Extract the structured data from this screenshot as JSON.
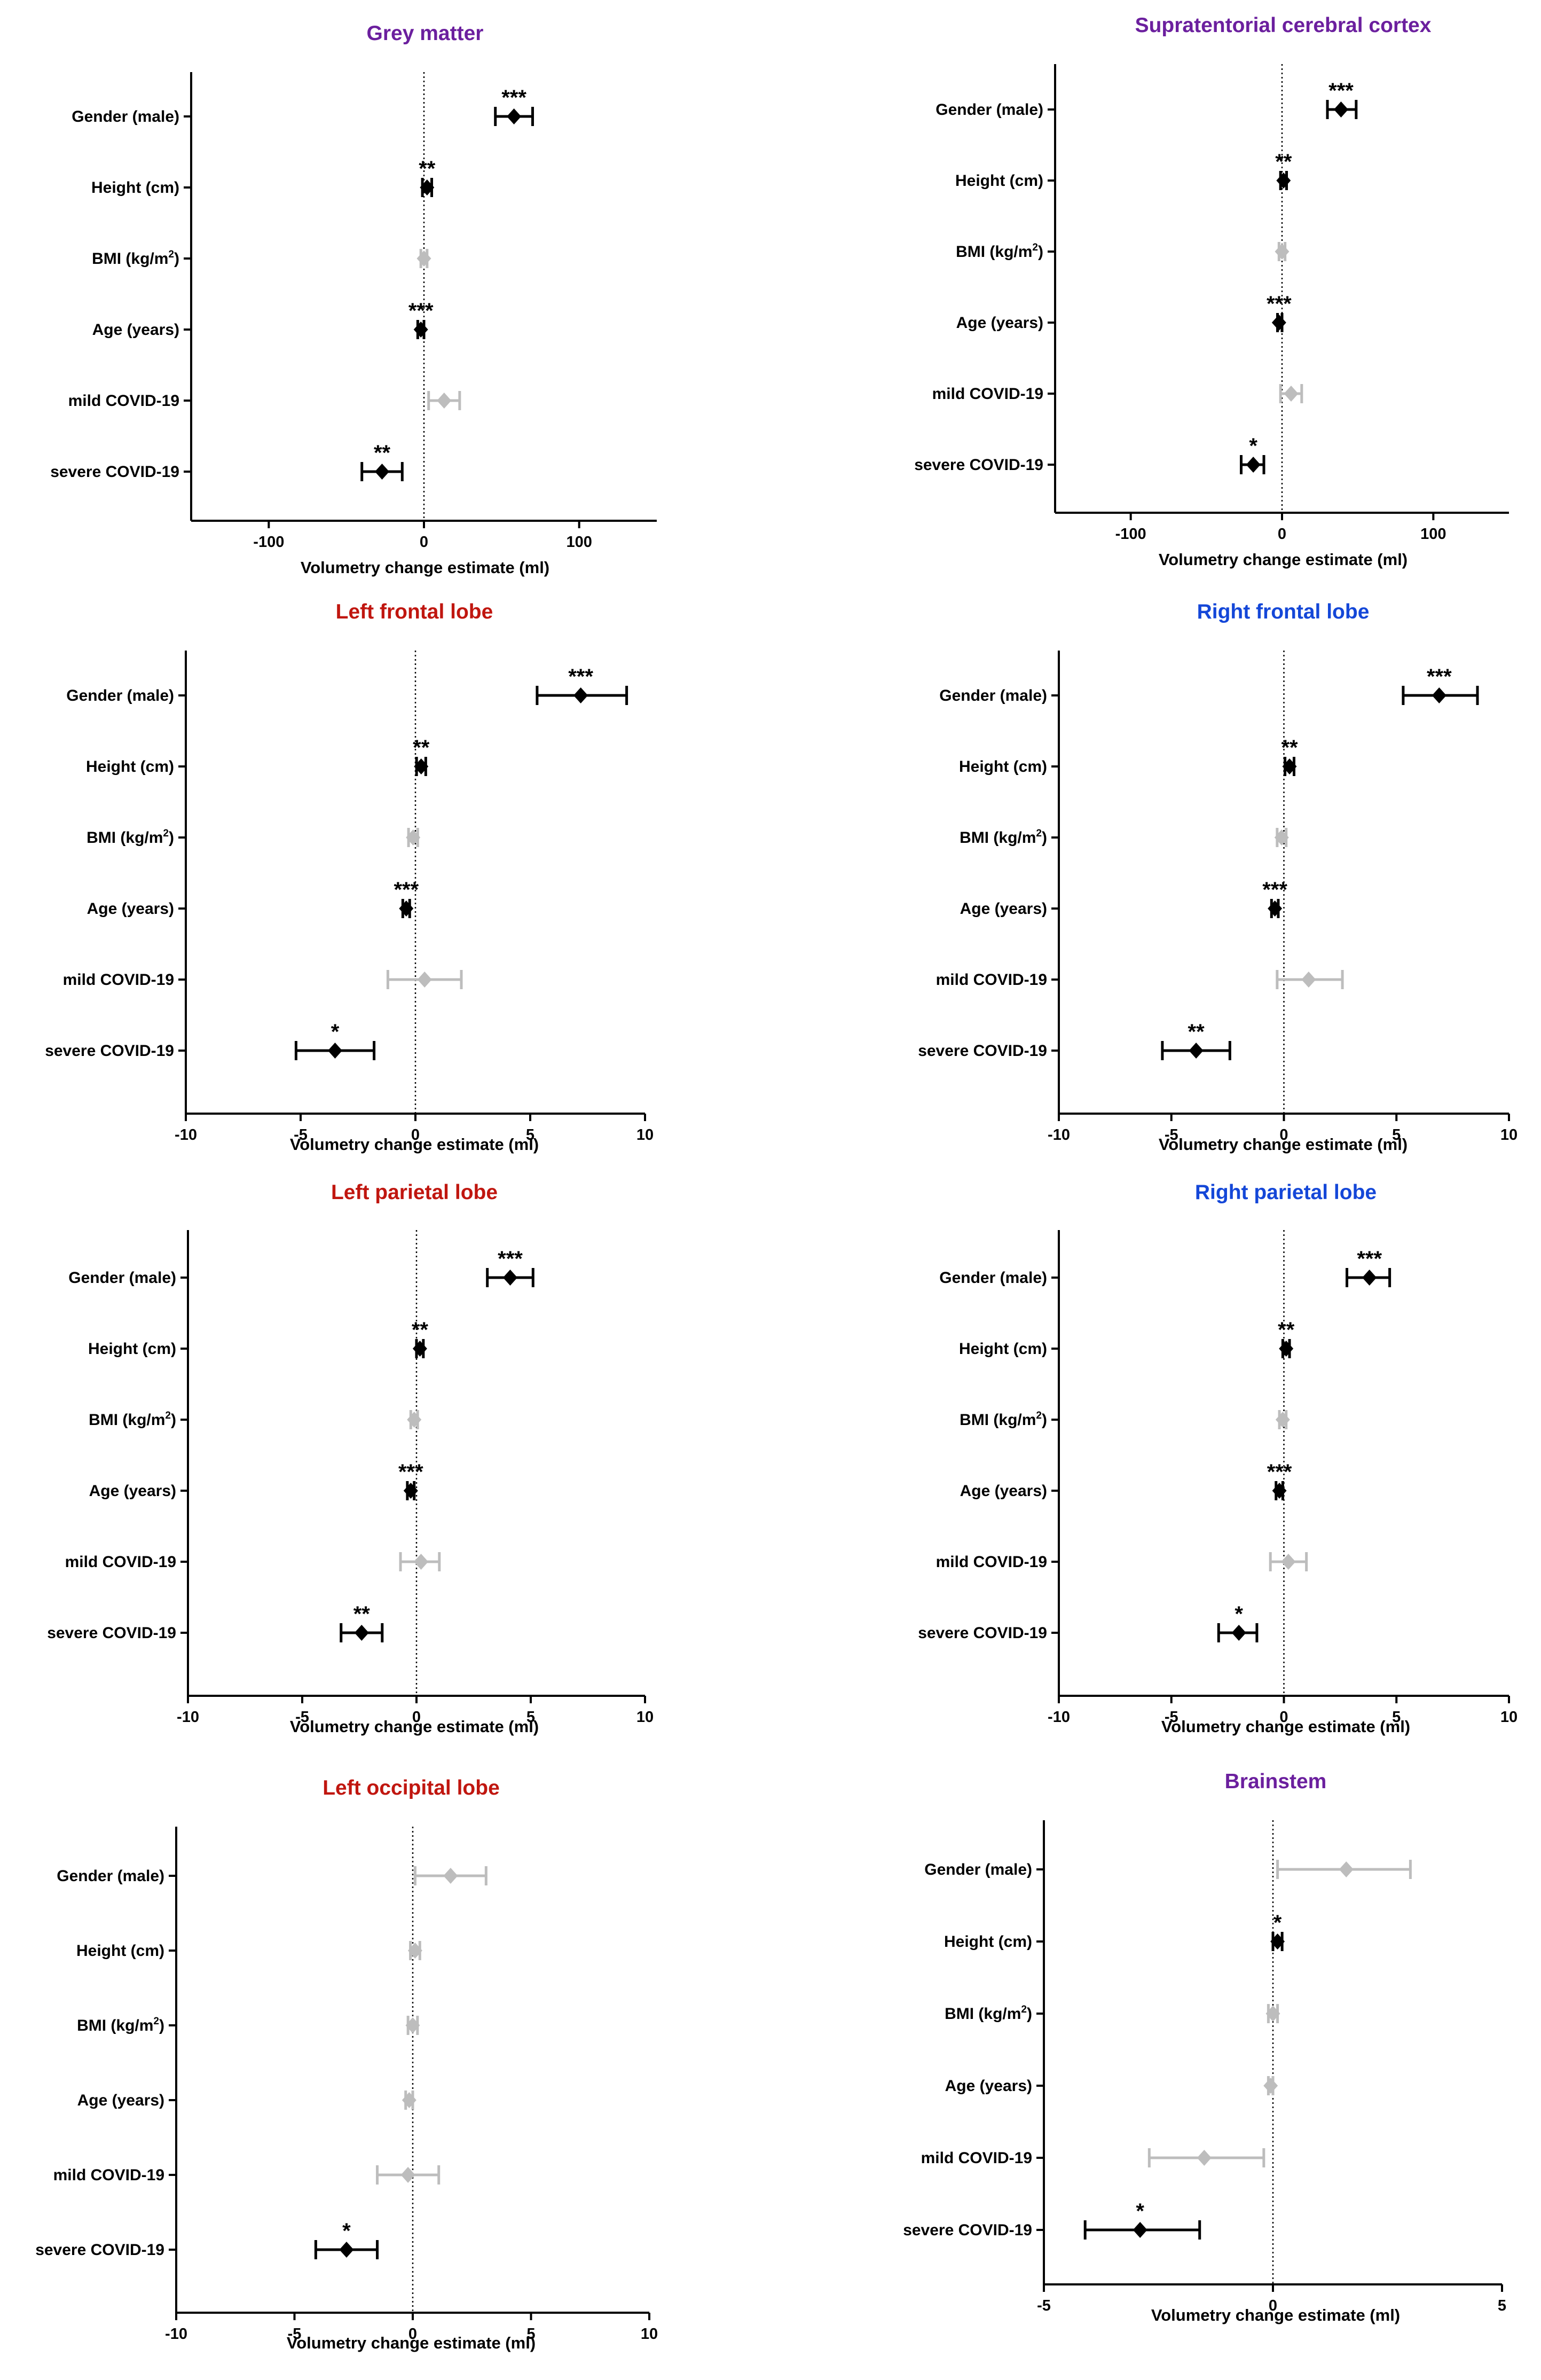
{
  "colors": {
    "purple": "#6b1f9e",
    "red": "#c0160f",
    "blue": "#1447d8",
    "black": "#000000",
    "grey": "#bdbdbd"
  },
  "chart_data": [
    {
      "type": "forest",
      "title": "Grey matter",
      "title_color": "purple",
      "xlabel": "Volumetry change estimate (ml)",
      "xlim": [
        -150,
        150
      ],
      "ticks": [
        -100,
        0,
        100
      ],
      "tick_labels": [
        "-100",
        "0",
        "100"
      ],
      "rows": [
        {
          "label": "Gender (male)",
          "est": 58,
          "lo": 46,
          "hi": 70,
          "sig": "***",
          "color": "black"
        },
        {
          "label": "Height (cm)",
          "est": 2,
          "lo": -1,
          "hi": 5,
          "sig": "**",
          "color": "black"
        },
        {
          "label": "BMI (kg/m",
          "sup": "2",
          "post": ")",
          "est": 0,
          "lo": -2,
          "hi": 2,
          "sig": "",
          "color": "grey"
        },
        {
          "label": "Age (years)",
          "est": -2,
          "lo": -4,
          "hi": 0,
          "sig": "***",
          "color": "black"
        },
        {
          "label": "mild COVID-19",
          "est": 13,
          "lo": 3,
          "hi": 23,
          "sig": "",
          "color": "grey"
        },
        {
          "label": "severe COVID-19",
          "est": -27,
          "lo": -40,
          "hi": -14,
          "sig": "**",
          "color": "black"
        }
      ]
    },
    {
      "type": "forest",
      "title": "Supratentorial cerebral cortex",
      "title_color": "purple",
      "xlabel": "Volumetry change estimate (ml)",
      "xlim": [
        -150,
        150
      ],
      "ticks": [
        -100,
        0,
        100
      ],
      "tick_labels": [
        "-100",
        "0",
        "100"
      ],
      "rows": [
        {
          "label": "Gender (male)",
          "est": 39,
          "lo": 30,
          "hi": 49,
          "sig": "***",
          "color": "black"
        },
        {
          "label": "Height (cm)",
          "est": 1,
          "lo": -1,
          "hi": 3,
          "sig": "**",
          "color": "black"
        },
        {
          "label": "BMI (kg/m",
          "sup": "2",
          "post": ")",
          "est": 0,
          "lo": -2,
          "hi": 2,
          "sig": "",
          "color": "grey"
        },
        {
          "label": "Age (years)",
          "est": -2,
          "lo": -3,
          "hi": 0,
          "sig": "***",
          "color": "black"
        },
        {
          "label": "mild COVID-19",
          "est": 6,
          "lo": -1,
          "hi": 13,
          "sig": "",
          "color": "grey"
        },
        {
          "label": "severe COVID-19",
          "est": -19,
          "lo": -27,
          "hi": -12,
          "sig": "*",
          "color": "black"
        }
      ]
    },
    {
      "type": "forest",
      "title": "Left frontal lobe",
      "title_color": "red",
      "xlabel": "Volumetry change estimate (ml)",
      "xlim": [
        -10,
        10
      ],
      "ticks": [
        -10,
        -5,
        0,
        5,
        10
      ],
      "tick_labels": [
        "-10",
        "-5",
        "0",
        "5",
        "10"
      ],
      "rows": [
        {
          "label": "Gender (male)",
          "est": 7.2,
          "lo": 5.3,
          "hi": 9.2,
          "sig": "***",
          "color": "black"
        },
        {
          "label": "Height (cm)",
          "est": 0.25,
          "lo": 0.05,
          "hi": 0.45,
          "sig": "**",
          "color": "black"
        },
        {
          "label": "BMI (kg/m",
          "sup": "2",
          "post": ")",
          "est": -0.1,
          "lo": -0.3,
          "hi": 0.1,
          "sig": "",
          "color": "grey"
        },
        {
          "label": "Age (years)",
          "est": -0.4,
          "lo": -0.55,
          "hi": -0.25,
          "sig": "***",
          "color": "black"
        },
        {
          "label": "mild COVID-19",
          "est": 0.4,
          "lo": -1.2,
          "hi": 2.0,
          "sig": "",
          "color": "grey"
        },
        {
          "label": "severe COVID-19",
          "est": -3.5,
          "lo": -5.2,
          "hi": -1.8,
          "sig": "*",
          "color": "black"
        }
      ]
    },
    {
      "type": "forest",
      "title": "Right frontal lobe",
      "title_color": "blue",
      "xlabel": "Volumetry change estimate (ml)",
      "xlim": [
        -10,
        10
      ],
      "ticks": [
        -10,
        -5,
        0,
        5,
        10
      ],
      "tick_labels": [
        "-10",
        "-5",
        "0",
        "5",
        "10"
      ],
      "rows": [
        {
          "label": "Gender (male)",
          "est": 6.9,
          "lo": 5.3,
          "hi": 8.6,
          "sig": "***",
          "color": "black"
        },
        {
          "label": "Height (cm)",
          "est": 0.25,
          "lo": 0.05,
          "hi": 0.45,
          "sig": "**",
          "color": "black"
        },
        {
          "label": "BMI (kg/m",
          "sup": "2",
          "post": ")",
          "est": -0.1,
          "lo": -0.3,
          "hi": 0.1,
          "sig": "",
          "color": "grey"
        },
        {
          "label": "Age (years)",
          "est": -0.4,
          "lo": -0.55,
          "hi": -0.25,
          "sig": "***",
          "color": "black"
        },
        {
          "label": "mild COVID-19",
          "est": 1.1,
          "lo": -0.3,
          "hi": 2.6,
          "sig": "",
          "color": "grey"
        },
        {
          "label": "severe COVID-19",
          "est": -3.9,
          "lo": -5.4,
          "hi": -2.4,
          "sig": "**",
          "color": "black"
        }
      ]
    },
    {
      "type": "forest",
      "title": "Left parietal lobe",
      "title_color": "red",
      "xlabel": "Volumetry change estimate (ml)",
      "xlim": [
        -10,
        10
      ],
      "ticks": [
        -10,
        -5,
        0,
        5,
        10
      ],
      "tick_labels": [
        "-10",
        "-5",
        "0",
        "5",
        "10"
      ],
      "rows": [
        {
          "label": "Gender (male)",
          "est": 4.1,
          "lo": 3.1,
          "hi": 5.1,
          "sig": "***",
          "color": "black"
        },
        {
          "label": "Height (cm)",
          "est": 0.15,
          "lo": 0.0,
          "hi": 0.3,
          "sig": "**",
          "color": "black"
        },
        {
          "label": "BMI (kg/m",
          "sup": "2",
          "post": ")",
          "est": -0.1,
          "lo": -0.25,
          "hi": 0.05,
          "sig": "",
          "color": "grey"
        },
        {
          "label": "Age (years)",
          "est": -0.25,
          "lo": -0.4,
          "hi": -0.1,
          "sig": "***",
          "color": "black"
        },
        {
          "label": "mild COVID-19",
          "est": 0.2,
          "lo": -0.7,
          "hi": 1.0,
          "sig": "",
          "color": "grey"
        },
        {
          "label": "severe COVID-19",
          "est": -2.4,
          "lo": -3.3,
          "hi": -1.5,
          "sig": "**",
          "color": "black"
        }
      ]
    },
    {
      "type": "forest",
      "title": "Right parietal lobe",
      "title_color": "blue",
      "xlabel": "Volumetry change estimate (ml)",
      "xlim": [
        -10,
        10
      ],
      "ticks": [
        -10,
        -5,
        0,
        5,
        10
      ],
      "tick_labels": [
        "-10",
        "-5",
        "0",
        "5",
        "10"
      ],
      "rows": [
        {
          "label": "Gender (male)",
          "est": 3.8,
          "lo": 2.8,
          "hi": 4.7,
          "sig": "***",
          "color": "black"
        },
        {
          "label": "Height (cm)",
          "est": 0.1,
          "lo": -0.05,
          "hi": 0.25,
          "sig": "**",
          "color": "black"
        },
        {
          "label": "BMI (kg/m",
          "sup": "2",
          "post": ")",
          "est": -0.05,
          "lo": -0.2,
          "hi": 0.1,
          "sig": "",
          "color": "grey"
        },
        {
          "label": "Age (years)",
          "est": -0.2,
          "lo": -0.35,
          "hi": -0.05,
          "sig": "***",
          "color": "black"
        },
        {
          "label": "mild COVID-19",
          "est": 0.2,
          "lo": -0.6,
          "hi": 1.0,
          "sig": "",
          "color": "grey"
        },
        {
          "label": "severe COVID-19",
          "est": -2.0,
          "lo": -2.9,
          "hi": -1.2,
          "sig": "*",
          "color": "black"
        }
      ]
    },
    {
      "type": "forest",
      "title": "Left occipital lobe",
      "title_color": "red",
      "xlabel": "Volumetry change estimate (ml)",
      "xlim": [
        -10,
        10
      ],
      "ticks": [
        -10,
        -5,
        0,
        5,
        10
      ],
      "tick_labels": [
        "-10",
        "-5",
        "0",
        "5",
        "10"
      ],
      "rows": [
        {
          "label": "Gender (male)",
          "est": 1.6,
          "lo": 0.1,
          "hi": 3.1,
          "sig": "",
          "color": "grey"
        },
        {
          "label": "Height (cm)",
          "est": 0.1,
          "lo": -0.1,
          "hi": 0.3,
          "sig": "",
          "color": "grey"
        },
        {
          "label": "BMI (kg/m",
          "sup": "2",
          "post": ")",
          "est": 0.0,
          "lo": -0.2,
          "hi": 0.2,
          "sig": "",
          "color": "grey"
        },
        {
          "label": "Age (years)",
          "est": -0.15,
          "lo": -0.3,
          "hi": 0.0,
          "sig": "",
          "color": "grey"
        },
        {
          "label": "mild COVID-19",
          "est": -0.2,
          "lo": -1.5,
          "hi": 1.1,
          "sig": "",
          "color": "grey"
        },
        {
          "label": "severe COVID-19",
          "est": -2.8,
          "lo": -4.1,
          "hi": -1.5,
          "sig": "*",
          "color": "black"
        }
      ]
    },
    {
      "type": "forest",
      "title": "Brainstem",
      "title_color": "purple",
      "xlabel": "Volumetry change estimate (ml)",
      "xlim": [
        -5,
        5
      ],
      "ticks": [
        -5,
        0,
        5
      ],
      "tick_labels": [
        "-5",
        "0",
        "5"
      ],
      "rows": [
        {
          "label": "Gender (male)",
          "est": 1.6,
          "lo": 0.1,
          "hi": 3.0,
          "sig": "",
          "color": "grey"
        },
        {
          "label": "Height (cm)",
          "est": 0.1,
          "lo": 0.0,
          "hi": 0.2,
          "sig": "*",
          "color": "black"
        },
        {
          "label": "BMI (kg/m",
          "sup": "2",
          "post": ")",
          "est": 0.0,
          "lo": -0.1,
          "hi": 0.1,
          "sig": "",
          "color": "grey"
        },
        {
          "label": "Age (years)",
          "est": -0.05,
          "lo": -0.1,
          "hi": 0.0,
          "sig": "",
          "color": "grey"
        },
        {
          "label": "mild COVID-19",
          "est": -1.5,
          "lo": -2.7,
          "hi": -0.2,
          "sig": "",
          "color": "grey"
        },
        {
          "label": "severe COVID-19",
          "est": -2.9,
          "lo": -4.1,
          "hi": -1.6,
          "sig": "*",
          "color": "black"
        }
      ]
    }
  ]
}
